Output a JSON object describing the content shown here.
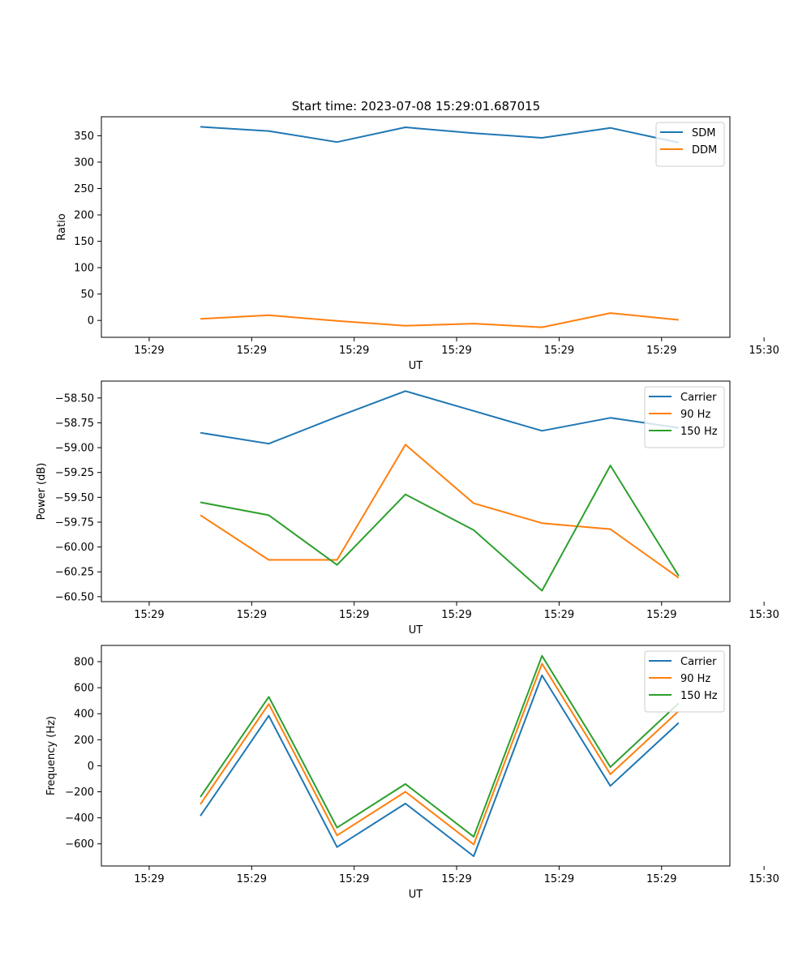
{
  "figure": {
    "title": "Start time: 2023-07-08 15:29:01.687015"
  },
  "colors": {
    "blue": "#1f77b4",
    "orange": "#ff7f0e",
    "green": "#2ca02c"
  },
  "chart_data": [
    {
      "type": "line",
      "ylabel": "Ratio",
      "xlabel": "UT",
      "x": [
        1,
        2,
        3,
        4,
        5,
        6,
        7,
        8
      ],
      "xlim": [
        -0.45,
        8.75
      ],
      "ylim": [
        -32,
        386
      ],
      "xticks": [
        0.25,
        1.75,
        3.25,
        4.75,
        6.25,
        7.75,
        9.25
      ],
      "xtick_labels": [
        "15:29",
        "15:29",
        "15:29",
        "15:29",
        "15:29",
        "15:29",
        "15:30"
      ],
      "yticks": [
        0,
        50,
        100,
        150,
        200,
        250,
        300,
        350
      ],
      "ytick_labels": [
        "0",
        "50",
        "100",
        "150",
        "200",
        "250",
        "300",
        "350"
      ],
      "legend_loc": "upper right",
      "series": [
        {
          "name": "SDM",
          "color": "blue",
          "values": [
            367,
            359,
            338,
            366,
            355,
            346,
            365,
            337
          ]
        },
        {
          "name": "DDM",
          "color": "orange",
          "values": [
            3,
            10,
            -1,
            -10,
            -6,
            -13,
            14,
            1
          ]
        }
      ]
    },
    {
      "type": "line",
      "ylabel": "Power (dB)",
      "xlabel": "UT",
      "x": [
        1,
        2,
        3,
        4,
        5,
        6,
        7,
        8
      ],
      "xlim": [
        -0.45,
        8.75
      ],
      "ylim": [
        -60.55,
        -58.33
      ],
      "xticks": [
        0.25,
        1.75,
        3.25,
        4.75,
        6.25,
        7.75,
        9.25
      ],
      "xtick_labels": [
        "15:29",
        "15:29",
        "15:29",
        "15:29",
        "15:29",
        "15:29",
        "15:30"
      ],
      "yticks": [
        -60.5,
        -60.25,
        -60.0,
        -59.75,
        -59.5,
        -59.25,
        -59.0,
        -58.75,
        -58.5
      ],
      "ytick_labels": [
        "−60.50",
        "−60.25",
        "−60.00",
        "−59.75",
        "−59.50",
        "−59.25",
        "−59.00",
        "−58.75",
        "−58.50"
      ],
      "legend_loc": "upper right",
      "series": [
        {
          "name": "Carrier",
          "color": "blue",
          "values": [
            -58.85,
            -58.96,
            -58.69,
            -58.43,
            -58.63,
            -58.83,
            -58.7,
            -58.8
          ]
        },
        {
          "name": "90 Hz",
          "color": "orange",
          "values": [
            -59.68,
            -60.13,
            -60.13,
            -58.97,
            -59.56,
            -59.76,
            -59.82,
            -60.31
          ]
        },
        {
          "name": "150 Hz",
          "color": "green",
          "values": [
            -59.55,
            -59.68,
            -60.18,
            -59.47,
            -59.83,
            -60.44,
            -59.18,
            -60.29
          ]
        }
      ]
    },
    {
      "type": "line",
      "ylabel": "Frequency (Hz)",
      "xlabel": "UT",
      "x": [
        1,
        2,
        3,
        4,
        5,
        6,
        7,
        8
      ],
      "xlim": [
        -0.45,
        8.75
      ],
      "ylim": [
        -770,
        925
      ],
      "xticks": [
        0.25,
        1.75,
        3.25,
        4.75,
        6.25,
        7.75,
        9.25
      ],
      "xtick_labels": [
        "15:29",
        "15:29",
        "15:29",
        "15:29",
        "15:29",
        "15:29",
        "15:30"
      ],
      "yticks": [
        -600,
        -400,
        -200,
        0,
        200,
        400,
        600,
        800
      ],
      "ytick_labels": [
        "−600",
        "−400",
        "−200",
        "0",
        "200",
        "400",
        "600",
        "800"
      ],
      "legend_loc": "upper right",
      "series": [
        {
          "name": "Carrier",
          "color": "blue",
          "values": [
            -385,
            385,
            -625,
            -290,
            -695,
            695,
            -155,
            330
          ]
        },
        {
          "name": "90 Hz",
          "color": "orange",
          "values": [
            -295,
            475,
            -535,
            -200,
            -605,
            785,
            -65,
            420
          ]
        },
        {
          "name": "150 Hz",
          "color": "green",
          "values": [
            -240,
            530,
            -475,
            -140,
            -545,
            845,
            -10,
            480
          ]
        }
      ]
    }
  ]
}
